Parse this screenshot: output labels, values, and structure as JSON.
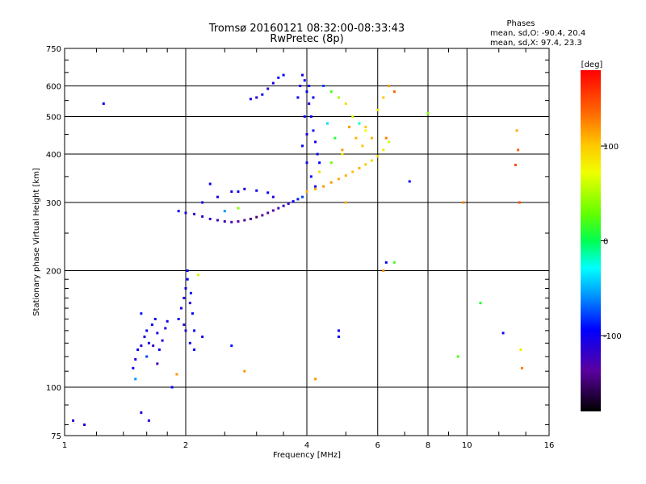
{
  "title_line1": "Tromsø 20160121 08:32:00-08:33:43",
  "title_line2": "RwPretec (8p)",
  "phases": {
    "heading": "Phases",
    "o_line": "mean, sd,O: -90.4, 20.4",
    "x_line": "mean, sd,X:  97.4, 23.3"
  },
  "colorbar": {
    "label": "[deg]",
    "ticks": [
      {
        "value": 100,
        "label": "100"
      },
      {
        "value": 0,
        "label": "0"
      },
      {
        "value": -100,
        "label": "-100"
      }
    ],
    "range": [
      -180,
      180
    ]
  },
  "chart_data": {
    "type": "scatter",
    "xlabel": "Frequency [MHz]",
    "ylabel": "Stationary phase Virtual Height [km]",
    "xscale": "log",
    "yscale": "log",
    "xlim": [
      1,
      16
    ],
    "ylim": [
      75,
      750
    ],
    "grid": true,
    "xticks": [
      {
        "value": 1,
        "label": "1"
      },
      {
        "value": 2,
        "label": "2"
      },
      {
        "value": 4,
        "label": "4"
      },
      {
        "value": 6,
        "label": "6"
      },
      {
        "value": 8,
        "label": "8"
      },
      {
        "value": 10,
        "label": "10"
      },
      {
        "value": 16,
        "label": "16"
      }
    ],
    "yticks": [
      {
        "value": 75,
        "label": "75"
      },
      {
        "value": 100,
        "label": "100"
      },
      {
        "value": 200,
        "label": "200"
      },
      {
        "value": 300,
        "label": "300"
      },
      {
        "value": 400,
        "label": "400"
      },
      {
        "value": 500,
        "label": "500"
      },
      {
        "value": 600,
        "label": "600"
      },
      {
        "value": 750,
        "label": "750"
      }
    ],
    "points": [
      [
        1.05,
        82,
        -110
      ],
      [
        1.12,
        80,
        -105
      ],
      [
        1.25,
        540,
        -100
      ],
      [
        1.48,
        112,
        -95
      ],
      [
        1.5,
        118,
        -110
      ],
      [
        1.52,
        125,
        -100
      ],
      [
        1.55,
        128,
        -115
      ],
      [
        1.58,
        135,
        -105
      ],
      [
        1.6,
        140,
        -100
      ],
      [
        1.62,
        130,
        -110
      ],
      [
        1.65,
        145,
        -95
      ],
      [
        1.68,
        150,
        -105
      ],
      [
        1.7,
        138,
        -110
      ],
      [
        1.72,
        125,
        -100
      ],
      [
        1.75,
        132,
        -115
      ],
      [
        1.78,
        142,
        -100
      ],
      [
        1.8,
        148,
        -105
      ],
      [
        1.55,
        155,
        -90
      ],
      [
        1.6,
        120,
        -80
      ],
      [
        1.66,
        128,
        -120
      ],
      [
        1.7,
        115,
        -130
      ],
      [
        1.5,
        105,
        -60
      ],
      [
        1.55,
        86,
        -110
      ],
      [
        1.62,
        82,
        -115
      ],
      [
        1.85,
        100,
        -95
      ],
      [
        1.9,
        108,
        120
      ],
      [
        1.92,
        150,
        -100
      ],
      [
        1.95,
        160,
        -105
      ],
      [
        1.98,
        170,
        -110
      ],
      [
        2.0,
        180,
        -100
      ],
      [
        2.02,
        190,
        -95
      ],
      [
        2.05,
        165,
        -110
      ],
      [
        2.08,
        155,
        -100
      ],
      [
        2.0,
        140,
        -115
      ],
      [
        2.05,
        130,
        -105
      ],
      [
        2.1,
        125,
        -100
      ],
      [
        2.02,
        200,
        -100
      ],
      [
        1.98,
        145,
        -120
      ],
      [
        2.06,
        175,
        -90
      ],
      [
        2.1,
        140,
        -95
      ],
      [
        2.15,
        195,
        60
      ],
      [
        2.2,
        135,
        -100
      ],
      [
        1.92,
        285,
        -100
      ],
      [
        2.0,
        282,
        -110
      ],
      [
        2.1,
        280,
        -120
      ],
      [
        2.2,
        276,
        -115
      ],
      [
        2.3,
        272,
        -120
      ],
      [
        2.4,
        270,
        -125
      ],
      [
        2.5,
        268,
        -130
      ],
      [
        2.6,
        267,
        -135
      ],
      [
        2.7,
        268,
        -140
      ],
      [
        2.8,
        270,
        -145
      ],
      [
        2.9,
        272,
        -150
      ],
      [
        3.0,
        275,
        -150
      ],
      [
        3.1,
        278,
        -145
      ],
      [
        3.2,
        282,
        -140
      ],
      [
        3.3,
        286,
        -135
      ],
      [
        3.4,
        290,
        -130
      ],
      [
        3.5,
        294,
        -125
      ],
      [
        3.6,
        298,
        -115
      ],
      [
        3.7,
        302,
        -100
      ],
      [
        3.8,
        306,
        -90
      ],
      [
        3.9,
        310,
        -80
      ],
      [
        2.2,
        300,
        -100
      ],
      [
        2.4,
        310,
        -105
      ],
      [
        2.6,
        320,
        -110
      ],
      [
        2.8,
        325,
        -105
      ],
      [
        3.0,
        322,
        -100
      ],
      [
        3.2,
        318,
        -95
      ],
      [
        2.5,
        285,
        -60
      ],
      [
        2.7,
        290,
        40
      ],
      [
        3.3,
        310,
        -110
      ],
      [
        2.3,
        335,
        -100
      ],
      [
        4.0,
        320,
        110
      ],
      [
        4.2,
        325,
        115
      ],
      [
        4.4,
        330,
        120
      ],
      [
        4.6,
        338,
        118
      ],
      [
        4.8,
        345,
        112
      ],
      [
        5.0,
        352,
        110
      ],
      [
        5.2,
        360,
        105
      ],
      [
        5.4,
        368,
        110
      ],
      [
        5.6,
        376,
        100
      ],
      [
        5.8,
        385,
        95
      ],
      [
        6.0,
        395,
        90
      ],
      [
        6.2,
        410,
        80
      ],
      [
        6.4,
        430,
        60
      ],
      [
        4.3,
        360,
        90
      ],
      [
        4.6,
        380,
        30
      ],
      [
        4.9,
        410,
        120
      ],
      [
        5.3,
        440,
        110
      ],
      [
        5.6,
        470,
        100
      ],
      [
        3.8,
        560,
        -100
      ],
      [
        3.85,
        600,
        -110
      ],
      [
        3.9,
        640,
        -105
      ],
      [
        3.95,
        620,
        -95
      ],
      [
        4.0,
        580,
        -100
      ],
      [
        4.05,
        540,
        -110
      ],
      [
        4.1,
        500,
        -100
      ],
      [
        4.15,
        460,
        -90
      ],
      [
        4.2,
        430,
        -105
      ],
      [
        4.25,
        400,
        -100
      ],
      [
        4.3,
        380,
        -95
      ],
      [
        4.0,
        450,
        -110
      ],
      [
        3.9,
        420,
        -100
      ],
      [
        4.0,
        380,
        -105
      ],
      [
        4.1,
        350,
        -100
      ],
      [
        4.2,
        330,
        -110
      ],
      [
        3.95,
        500,
        -95
      ],
      [
        4.05,
        600,
        -90
      ],
      [
        4.15,
        560,
        -100
      ],
      [
        3.2,
        590,
        -110
      ],
      [
        3.3,
        610,
        -105
      ],
      [
        3.4,
        630,
        -100
      ],
      [
        3.5,
        640,
        -95
      ],
      [
        3.1,
        570,
        -100
      ],
      [
        3.0,
        560,
        -110
      ],
      [
        2.9,
        555,
        -105
      ],
      [
        4.4,
        600,
        -80
      ],
      [
        4.6,
        580,
        20
      ],
      [
        4.8,
        560,
        50
      ],
      [
        5.0,
        540,
        90
      ],
      [
        5.2,
        500,
        60
      ],
      [
        5.4,
        480,
        -20
      ],
      [
        5.6,
        460,
        70
      ],
      [
        5.8,
        440,
        110
      ],
      [
        6.0,
        520,
        80
      ],
      [
        6.2,
        560,
        100
      ],
      [
        6.4,
        600,
        120
      ],
      [
        6.6,
        580,
        140
      ],
      [
        4.5,
        480,
        -40
      ],
      [
        4.7,
        440,
        10
      ],
      [
        4.9,
        400,
        80
      ],
      [
        5.1,
        470,
        120
      ],
      [
        5.5,
        420,
        100
      ],
      [
        6.3,
        440,
        130
      ],
      [
        6.2,
        200,
        120
      ],
      [
        6.3,
        210,
        -100
      ],
      [
        6.6,
        210,
        20
      ],
      [
        7.2,
        340,
        -100
      ],
      [
        8.0,
        510,
        40
      ],
      [
        9.5,
        120,
        20
      ],
      [
        9.8,
        300,
        130
      ],
      [
        10.8,
        165,
        10
      ],
      [
        12.3,
        138,
        -100
      ],
      [
        13.2,
        375,
        150
      ],
      [
        13.3,
        460,
        110
      ],
      [
        13.4,
        410,
        140
      ],
      [
        13.5,
        300,
        150
      ],
      [
        13.6,
        125,
        80
      ],
      [
        13.7,
        112,
        130
      ],
      [
        4.8,
        135,
        -100
      ],
      [
        4.8,
        140,
        -95
      ],
      [
        5.0,
        300,
        110
      ],
      [
        4.2,
        105,
        120
      ],
      [
        2.6,
        128,
        -90
      ],
      [
        2.8,
        110,
        120
      ],
      [
        2.7,
        320,
        -100
      ]
    ]
  }
}
